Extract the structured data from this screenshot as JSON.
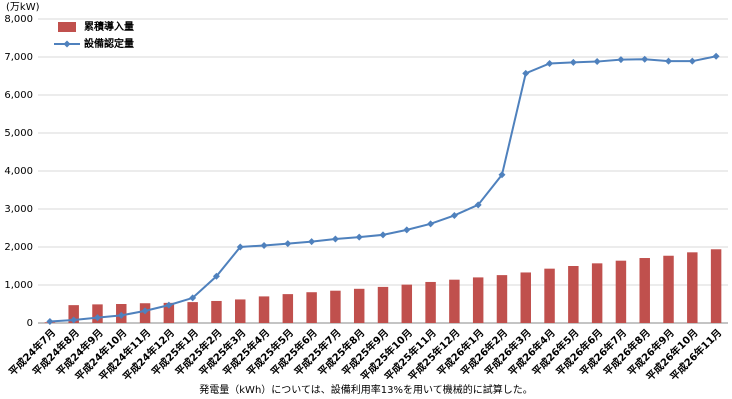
{
  "chart_data": {
    "type": "bar",
    "unit_label": "(万kW)",
    "note": "発電量（kWh）については、設備利用率13%を用いて機械的に試算した。",
    "categories": [
      "平成24年7月",
      "平成24年8月",
      "平成24年9月",
      "平成24年10月",
      "平成24年11月",
      "平成24年12月",
      "平成25年1月",
      "平成25年2月",
      "平成25年3月",
      "平成25年4月",
      "平成25年5月",
      "平成25年6月",
      "平成25年7月",
      "平成25年8月",
      "平成25年9月",
      "平成25年10月",
      "平成25年11月",
      "平成25年12月",
      "平成26年1月",
      "平成26年2月",
      "平成26年3月",
      "平成26年4月",
      "平成26年5月",
      "平成26年6月",
      "平成26年7月",
      "平成26年8月",
      "平成26年9月",
      "平成26年10月",
      "平成26年11月"
    ],
    "series": [
      {
        "name": "累積導入量",
        "type": "bar",
        "color": "#c0504d",
        "values": [
          20,
          470,
          490,
          500,
          520,
          530,
          550,
          580,
          620,
          700,
          760,
          810,
          850,
          900,
          950,
          1010,
          1080,
          1140,
          1200,
          1260,
          1330,
          1430,
          1500,
          1570,
          1640,
          1710,
          1770,
          1860,
          1940
        ]
      },
      {
        "name": "設備認定量",
        "type": "line",
        "color": "#4f81bd",
        "values": [
          40,
          80,
          140,
          200,
          320,
          470,
          660,
          1230,
          2000,
          2040,
          2090,
          2140,
          2210,
          2260,
          2320,
          2450,
          2610,
          2830,
          3110,
          3900,
          6570,
          6830,
          6860,
          6880,
          6930,
          6940,
          6890,
          6890,
          7020
        ]
      }
    ],
    "ylim": [
      0,
      8000
    ],
    "yticks": [
      0,
      {
        "value": 1000,
        "label": "1,000"
      },
      {
        "value": 2000,
        "label": "2,000"
      },
      {
        "value": 3000,
        "label": "3,000"
      },
      {
        "value": 4000,
        "label": "4,000"
      },
      {
        "value": 5000,
        "label": "5,000"
      },
      {
        "value": 6000,
        "label": "6,000"
      },
      {
        "value": 7000,
        "label": "7,000"
      },
      {
        "value": 8000,
        "label": "8,000"
      }
    ],
    "grid": true,
    "legend": "upper left"
  }
}
